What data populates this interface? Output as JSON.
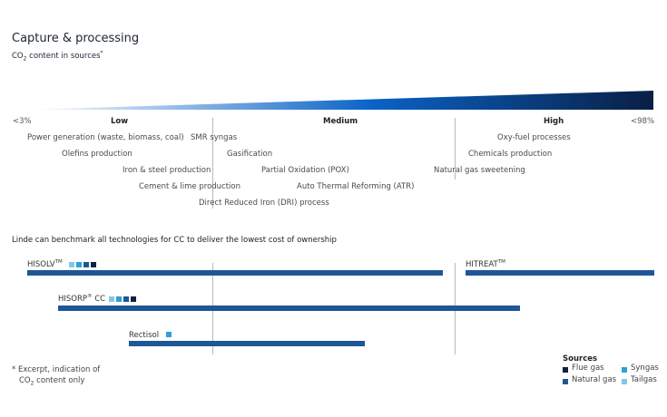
{
  "header": {
    "title": "Capture & processing",
    "subtitle_pre": "CO",
    "subtitle_sub": "2",
    "subtitle_post": " content in sources",
    "subtitle_mark": "*"
  },
  "scale": {
    "min_label": "<3%",
    "max_label": "<98%",
    "levels": [
      "Low",
      "Medium",
      "High"
    ],
    "gradient_colors": [
      "#ffffff",
      "#0a63c7",
      "#0a1f45"
    ]
  },
  "sources": [
    "Power generation (waste, biomass, coal)",
    "SMR syngas",
    "Oxy-fuel processes",
    "Olefins production",
    "Gasification",
    "Chemicals production",
    "Iron & steel production",
    "Partial Oxidation (POX)",
    "Natural gas sweetening",
    "Cement & lime production",
    "Auto Thermal Reforming (ATR)",
    "Direct Reduced Iron (DRI) process"
  ],
  "benchmark": {
    "heading": "Linde can benchmark all technologies for CC to deliver the lowest cost of ownership",
    "technologies": [
      {
        "name": "HISOLV",
        "mark": "TM",
        "suffix": ""
      },
      {
        "name": "HITREAT",
        "mark": "TM",
        "suffix": ""
      },
      {
        "name": "HISORP",
        "mark": "®",
        "suffix": " CC"
      },
      {
        "name": "Rectisol",
        "mark": "",
        "suffix": ""
      }
    ]
  },
  "footnote": {
    "line1": "* Excerpt, indication of",
    "line2_pre": "CO",
    "line2_sub": "2",
    "line2_post": " content only"
  },
  "legend": {
    "title": "Sources",
    "items": [
      {
        "label": "Flue gas",
        "color": "#0d2341"
      },
      {
        "label": "Syngas",
        "color": "#2f9fd4"
      },
      {
        "label": "Natural gas",
        "color": "#1f5796"
      },
      {
        "label": "Tailgas",
        "color": "#80c8e8"
      }
    ]
  },
  "colors": {
    "bar": "#1f5796",
    "flue_gas": "#0d2341",
    "natural_gas": "#1f5796",
    "syngas": "#2f9fd4",
    "tailgas": "#80c8e8"
  }
}
